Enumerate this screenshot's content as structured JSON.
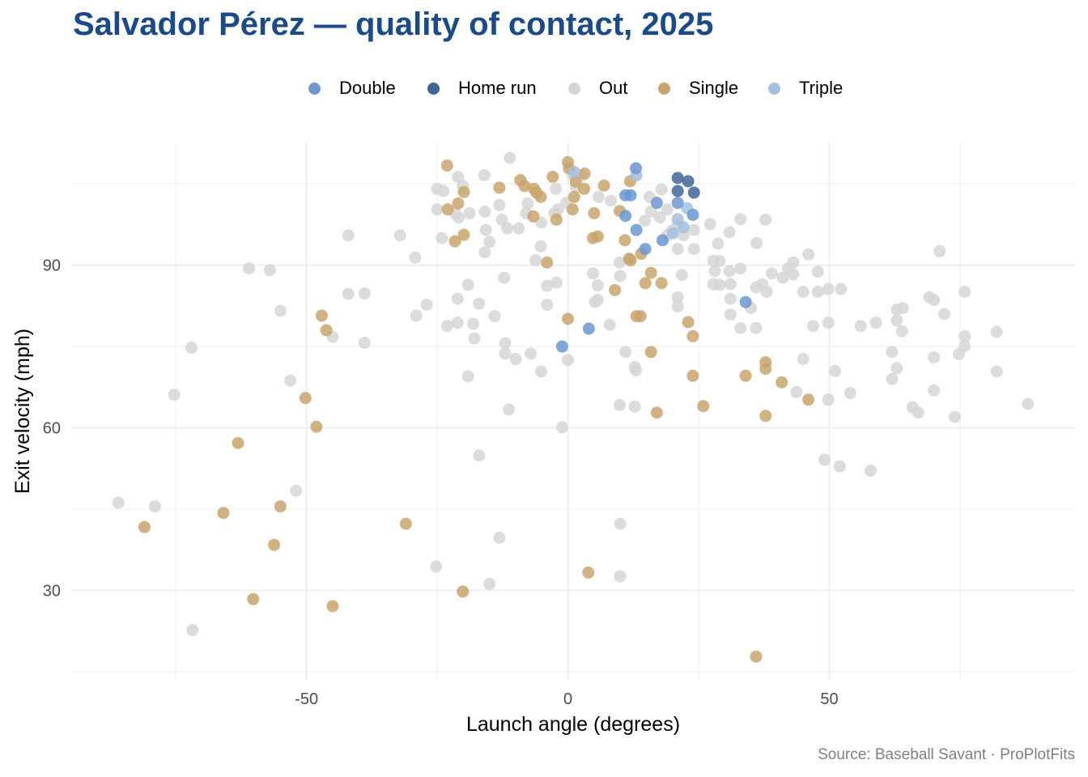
{
  "header": {
    "title": "Salvador Pérez — quality of contact, 2025"
  },
  "legend": {
    "items": [
      {
        "label": "Double",
        "color": "#6b98d1"
      },
      {
        "label": "Home run",
        "color": "#3f6699"
      },
      {
        "label": "Out",
        "color": "#d6d6d6"
      },
      {
        "label": "Single",
        "color": "#c9a46c"
      },
      {
        "label": "Triple",
        "color": "#a4bfe0"
      }
    ]
  },
  "caption": "Source: Baseball Savant · ProPlotFits",
  "chart_data": {
    "type": "scatter",
    "title": "Salvador Pérez — quality of contact, 2025",
    "xlabel": "Launch angle (degrees)",
    "ylabel": "Exit velocity (mph)",
    "xlim": [
      -95,
      97
    ],
    "ylim": [
      13.5,
      112.8
    ],
    "xticks": [
      -50,
      0,
      50
    ],
    "yticks": [
      30,
      60,
      90
    ],
    "grid": true,
    "legend_position": "top",
    "series": [
      {
        "name": "Out",
        "color": "#d6d6d6",
        "points": [
          [
            -86,
            46.2
          ],
          [
            -79,
            45.5
          ],
          [
            -71.8,
            22.7
          ],
          [
            -75.3,
            66.1
          ],
          [
            -72,
            74.8
          ],
          [
            -61,
            89.4
          ],
          [
            -57,
            89.1
          ],
          [
            -55,
            81.6
          ],
          [
            -53.1,
            68.7
          ],
          [
            -52,
            48.4
          ],
          [
            -42,
            95.5
          ],
          [
            -42,
            84.7
          ],
          [
            -38.9,
            84.8
          ],
          [
            -38.9,
            75.7
          ],
          [
            -45,
            76.8
          ],
          [
            -32.1,
            95.5
          ],
          [
            -29.2,
            91.4
          ],
          [
            -29,
            80.7
          ],
          [
            -27,
            82.7
          ],
          [
            -25,
            104.1
          ],
          [
            -25,
            100.3
          ],
          [
            -24.1,
            95.0
          ],
          [
            -23.1,
            78.8
          ],
          [
            -21.1,
            83.8
          ],
          [
            -21.1,
            79.4
          ],
          [
            -19.1,
            69.5
          ],
          [
            -17,
            54.9
          ],
          [
            -25.2,
            34.4
          ],
          [
            -15,
            31.2
          ],
          [
            -13.1,
            39.7
          ],
          [
            -11.3,
            63.4
          ],
          [
            -19.1,
            86.4
          ],
          [
            -18.1,
            79.2
          ],
          [
            -17.9,
            76.5
          ],
          [
            -17,
            82.9
          ],
          [
            -15.9,
            92.4
          ],
          [
            -15,
            94.3
          ],
          [
            -14,
            80.6
          ],
          [
            -12,
            75.6
          ],
          [
            -12,
            73.7
          ],
          [
            -12.2,
            87.7
          ],
          [
            -10,
            72.7
          ],
          [
            -7.1,
            73.7
          ],
          [
            -5.1,
            70.4
          ],
          [
            -4,
            82.7
          ],
          [
            -6.2,
            90.9
          ],
          [
            -5.2,
            93.5
          ],
          [
            -4,
            86.2
          ],
          [
            -2.2,
            86.8
          ],
          [
            0,
            72.5
          ],
          [
            -1.1,
            60.1
          ],
          [
            10,
            42.3
          ],
          [
            10,
            32.6
          ],
          [
            9.9,
            64.2
          ],
          [
            12.8,
            63.9
          ],
          [
            12.8,
            71.2
          ],
          [
            13,
            70.6
          ],
          [
            11,
            74.0
          ],
          [
            8,
            79.0
          ],
          [
            5.7,
            83.6
          ],
          [
            5.2,
            83.2
          ],
          [
            5.7,
            86.3
          ],
          [
            4.8,
            88.5
          ],
          [
            10,
            88.0
          ],
          [
            9.9,
            90.5
          ],
          [
            -11.1,
            109.8
          ],
          [
            -16,
            106.6
          ],
          [
            -21,
            106.3
          ],
          [
            -20.1,
            104.7
          ],
          [
            -23.8,
            103.7
          ],
          [
            -21.6,
            99.6
          ],
          [
            -20.9,
            98.8
          ],
          [
            -18.8,
            99.6
          ],
          [
            -15.9,
            99.9
          ],
          [
            -15.7,
            96.5
          ],
          [
            -12.6,
            98.4
          ],
          [
            -13.1,
            101.1
          ],
          [
            -11.6,
            96.8
          ],
          [
            -9.4,
            96.8
          ],
          [
            -7.7,
            101.4
          ],
          [
            -8.0,
            99.6
          ],
          [
            -5.1,
            97.9
          ],
          [
            -2.3,
            104.1
          ],
          [
            -2.6,
            99.6
          ],
          [
            -1.9,
            100.3
          ],
          [
            -0.3,
            101.5
          ],
          [
            1.5,
            104.4
          ],
          [
            0.9,
            106.7
          ],
          [
            2.5,
            106.4
          ],
          [
            5.9,
            102.6
          ],
          [
            8.2,
            101.9
          ],
          [
            15.6,
            102.6
          ],
          [
            17.9,
            104.0
          ],
          [
            15.9,
            99.9
          ],
          [
            14.7,
            98.2
          ],
          [
            17.6,
            98.8
          ],
          [
            19,
            100.3
          ],
          [
            21,
            97.6
          ],
          [
            19.9,
            96.4
          ],
          [
            19,
            95.5
          ],
          [
            21,
            93.0
          ],
          [
            22.1,
            95.5
          ],
          [
            24.1,
            96.5
          ],
          [
            24.1,
            93.0
          ],
          [
            27.2,
            97.6
          ],
          [
            28.7,
            94.0
          ],
          [
            30.9,
            96.1
          ],
          [
            33,
            98.5
          ],
          [
            37.8,
            98.4
          ],
          [
            36.1,
            94.1
          ],
          [
            27.8,
            90.8
          ],
          [
            29,
            90.8
          ],
          [
            28.1,
            88.9
          ],
          [
            30.9,
            88.9
          ],
          [
            33.0,
            89.4
          ],
          [
            31.1,
            86.5
          ],
          [
            27.8,
            86.5
          ],
          [
            29,
            86.4
          ],
          [
            21.8,
            88.2
          ],
          [
            21,
            84.1
          ],
          [
            21,
            82.4
          ],
          [
            31.1,
            83.8
          ],
          [
            31.1,
            80.9
          ],
          [
            33,
            78.4
          ],
          [
            36,
            78.4
          ],
          [
            35,
            82.1
          ],
          [
            36,
            85.9
          ],
          [
            37.2,
            86.5
          ],
          [
            38,
            85.1
          ],
          [
            39,
            88.5
          ],
          [
            41.1,
            87.7
          ],
          [
            43.1,
            90.5
          ],
          [
            43.1,
            88.3
          ],
          [
            42.1,
            89.4
          ],
          [
            46,
            92.0
          ],
          [
            45,
            85.1
          ],
          [
            46.9,
            78.8
          ],
          [
            47.8,
            88.8
          ],
          [
            47.8,
            85.1
          ],
          [
            49.8,
            85.6
          ],
          [
            52.2,
            85.6
          ],
          [
            45,
            72.7
          ],
          [
            49.8,
            79.4
          ],
          [
            49.8,
            65.2
          ],
          [
            51.1,
            70.5
          ],
          [
            54,
            66.4
          ],
          [
            49.1,
            54.1
          ],
          [
            52,
            52.9
          ],
          [
            57.9,
            52.1
          ],
          [
            56,
            78.8
          ],
          [
            58.9,
            79.4
          ],
          [
            62.9,
            81.8
          ],
          [
            64,
            82.1
          ],
          [
            63.9,
            77.8
          ],
          [
            62.9,
            79.8
          ],
          [
            62.0,
            74.0
          ],
          [
            62.9,
            71.0
          ],
          [
            62,
            69.0
          ],
          [
            65.9,
            63.8
          ],
          [
            67,
            62.8
          ],
          [
            69.1,
            84.1
          ],
          [
            70,
            83.6
          ],
          [
            71.1,
            92.6
          ],
          [
            72,
            81.0
          ],
          [
            70,
            73.0
          ],
          [
            70,
            66.9
          ],
          [
            74,
            62.0
          ],
          [
            74.8,
            73.6
          ],
          [
            75.9,
            85.1
          ],
          [
            75.9,
            76.9
          ],
          [
            75.9,
            75.1
          ],
          [
            82,
            77.7
          ],
          [
            82,
            70.4
          ],
          [
            88,
            64.4
          ],
          [
            43.7,
            66.6
          ]
        ]
      },
      {
        "name": "Single",
        "color": "#c9a46c",
        "points": [
          [
            -23.1,
            108.4
          ],
          [
            -23,
            100.3
          ],
          [
            -21,
            101.4
          ],
          [
            -19.9,
            103.5
          ],
          [
            -21.6,
            94.4
          ],
          [
            -19.9,
            95.6
          ],
          [
            -13.1,
            104.3
          ],
          [
            -9.1,
            105.7
          ],
          [
            -6.5,
            104.1
          ],
          [
            -6,
            103.4
          ],
          [
            -5.2,
            102.6
          ],
          [
            -2.2,
            98.4
          ],
          [
            -2.9,
            106.3
          ],
          [
            -4,
            90.5
          ],
          [
            0,
            109
          ],
          [
            0.2,
            107.9
          ],
          [
            1.5,
            105.4
          ],
          [
            3.2,
            106.9
          ],
          [
            3.1,
            104.1
          ],
          [
            1.2,
            102.6
          ],
          [
            0.9,
            100.3
          ],
          [
            6.9,
            104.7
          ],
          [
            5,
            99.6
          ],
          [
            4.8,
            95
          ],
          [
            5.7,
            95.3
          ],
          [
            9.9,
            100.0
          ],
          [
            10.9,
            94.6
          ],
          [
            12.0,
            90.9
          ],
          [
            11.7,
            91.2
          ],
          [
            11.9,
            105.5
          ],
          [
            14,
            92.1
          ],
          [
            15.9,
            88.6
          ],
          [
            17.9,
            86.7
          ],
          [
            14.8,
            86.7
          ],
          [
            13.1,
            80.6
          ],
          [
            13.9,
            80.6
          ],
          [
            9,
            85.4
          ],
          [
            0,
            80.1
          ],
          [
            23,
            79.5
          ],
          [
            23.9,
            76.9
          ],
          [
            15.9,
            74.0
          ],
          [
            23.9,
            69.6
          ],
          [
            17,
            62.8
          ],
          [
            25.9,
            64.0
          ],
          [
            34,
            69.6
          ],
          [
            37.8,
            72.1
          ],
          [
            37.8,
            70.9
          ],
          [
            40.9,
            68.4
          ],
          [
            46,
            65.2
          ],
          [
            37.8,
            62.2
          ],
          [
            36,
            17.8
          ],
          [
            3.9,
            33.3
          ],
          [
            -20.1,
            29.8
          ],
          [
            -31,
            42.3
          ],
          [
            -45,
            27.1
          ],
          [
            -60.2,
            28.4
          ],
          [
            -56.2,
            38.4
          ],
          [
            -55,
            45.5
          ],
          [
            -65.9,
            44.3
          ],
          [
            -81,
            41.7
          ],
          [
            -63.1,
            57.2
          ],
          [
            -48.1,
            60.2
          ],
          [
            -50.2,
            65.5
          ],
          [
            -47.1,
            80.7
          ],
          [
            -46.2,
            78.0
          ],
          [
            -8.3,
            104.6
          ],
          [
            -6.6,
            99
          ]
        ]
      },
      {
        "name": "Triple",
        "color": "#a4bfe0",
        "points": [
          [
            13.1,
            106.6
          ],
          [
            1.2,
            107.2
          ],
          [
            22.8,
            100.5
          ],
          [
            21.0,
            98.5
          ],
          [
            22.1,
            97.0
          ],
          [
            20.1,
            95.9
          ]
        ]
      },
      {
        "name": "Double",
        "color": "#6b98d1",
        "points": [
          [
            13.0,
            107.9
          ],
          [
            11.0,
            102.9
          ],
          [
            12.0,
            102.9
          ],
          [
            17.0,
            101.5
          ],
          [
            21.0,
            101.5
          ],
          [
            23.9,
            99.3
          ],
          [
            11.0,
            99.1
          ],
          [
            13.1,
            96.5
          ],
          [
            18.1,
            94.6
          ],
          [
            14.8,
            93.0
          ],
          [
            34.0,
            83.2
          ],
          [
            4.0,
            78.3
          ],
          [
            -1.1,
            75.0
          ]
        ]
      },
      {
        "name": "Home run",
        "color": "#3f6699",
        "points": [
          [
            21.0,
            106.1
          ],
          [
            23.0,
            105.5
          ],
          [
            21.0,
            103.7
          ],
          [
            24.1,
            103.4
          ]
        ]
      }
    ]
  }
}
